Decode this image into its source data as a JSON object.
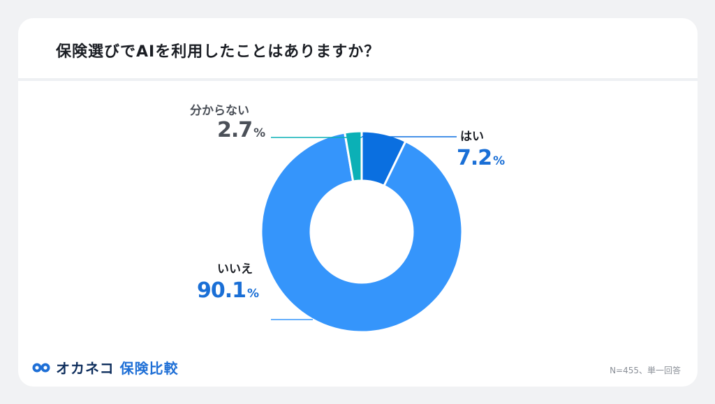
{
  "title": "保険選びでAIを利用したことはありますか？",
  "footnote": "N=455、単一回答",
  "logo": {
    "name": "オカネコ",
    "sub": "保険比較",
    "icon": "owl-logo-icon"
  },
  "colors": {
    "yes": "#0a6fe0",
    "no": "#3595fb",
    "unknown": "#0bb0b6",
    "label_blue": "#1a6fd6",
    "label_grey": "#4b5058"
  },
  "chart_data": {
    "type": "pie",
    "title": "保険選びでAIを利用したことはありますか？",
    "categories": [
      "はい",
      "いいえ",
      "分からない"
    ],
    "values": [
      7.2,
      90.1,
      2.7
    ],
    "labels": {
      "yes": {
        "category": "はい",
        "value": "7.2",
        "unit": "%"
      },
      "no": {
        "category": "いいえ",
        "value": "90.1",
        "unit": "%"
      },
      "unknown": {
        "category": "分からない",
        "value": "2.7",
        "unit": "%"
      }
    },
    "legend": "none"
  }
}
